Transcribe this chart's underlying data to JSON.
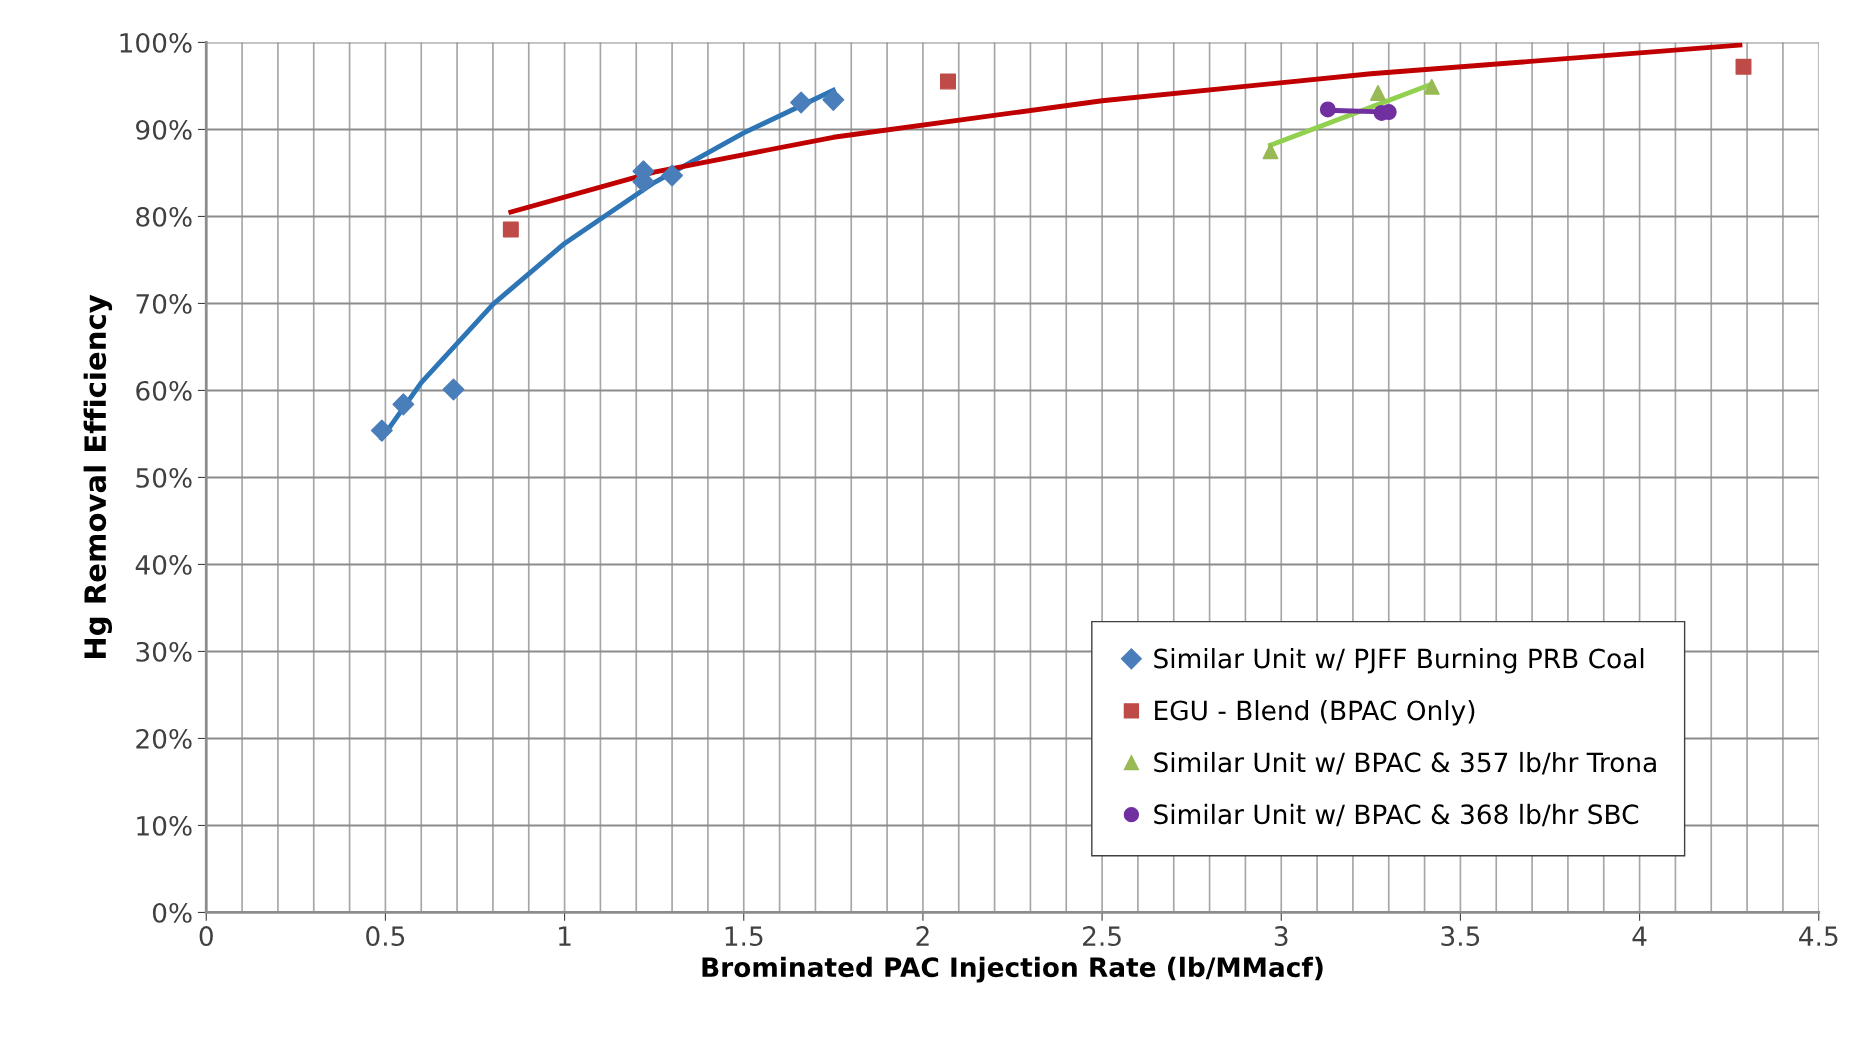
{
  "chart_data": {
    "type": "scatter",
    "xlabel": "Brominated PAC Injection Rate (lb/MMacf)",
    "ylabel": "Hg Removal Efficiency",
    "xlim": [
      0,
      4.5
    ],
    "xticks": [
      0,
      0.5,
      1,
      1.5,
      2,
      2.5,
      3,
      3.5,
      4,
      4.5
    ],
    "ylim": [
      0,
      100
    ],
    "yticks": [
      {
        "value": 0,
        "label": "0%"
      },
      {
        "value": 10,
        "label": "10%"
      },
      {
        "value": 20,
        "label": "20%"
      },
      {
        "value": 30,
        "label": "30%"
      },
      {
        "value": 40,
        "label": "40%"
      },
      {
        "value": 50,
        "label": "50%"
      },
      {
        "value": 60,
        "label": "60%"
      },
      {
        "value": 70,
        "label": "70%"
      },
      {
        "value": 80,
        "label": "80%"
      },
      {
        "value": 90,
        "label": "90%"
      },
      {
        "value": 100,
        "label": "100%"
      }
    ],
    "grid": true,
    "legend": "bottom right",
    "series": [
      {
        "name": "Similar Unit w/ PJFF Burning PRB Coal",
        "color": "#4a7ebb",
        "marker": "diamond",
        "x": [
          0.49,
          0.55,
          0.69,
          1.22,
          1.22,
          1.3,
          1.66,
          1.75
        ],
        "values": [
          55.4,
          58.4,
          60.1,
          85.2,
          84.0,
          84.7,
          93.1,
          93.4
        ]
      },
      {
        "name": "EGU - Blend (BPAC Only)",
        "color": "#be4b48",
        "marker": "square",
        "x": [
          0.85,
          2.07,
          4.29
        ],
        "values": [
          78.5,
          95.5,
          97.2
        ]
      },
      {
        "name": "Similar Unit w/ BPAC & 357 lb/hr Trona",
        "color": "#98b954",
        "marker": "triangle",
        "x": [
          2.97,
          3.27,
          3.42
        ],
        "values": [
          87.5,
          94.2,
          94.9
        ]
      },
      {
        "name": "Similar Unit w/ BPAC & 368 lb/hr SBC",
        "color": "#7030a0",
        "marker": "circle",
        "x": [
          3.13,
          3.28,
          3.3
        ],
        "values": [
          92.3,
          91.9,
          92.0
        ]
      },
      {
        "type": "line",
        "color": "#2e75b6",
        "marker": "none",
        "x": [
          0.49,
          0.6,
          0.8,
          1.0,
          1.25,
          1.5,
          1.75
        ],
        "values": [
          54.5,
          60.9,
          69.9,
          76.9,
          83.9,
          89.6,
          94.5
        ]
      },
      {
        "type": "line",
        "color": "#c00000",
        "marker": "none",
        "x": [
          0.85,
          1.25,
          1.75,
          2.5,
          3.25,
          4.28
        ],
        "values": [
          80.5,
          85.1,
          89.1,
          93.3,
          96.4,
          99.7
        ]
      },
      {
        "type": "line",
        "color": "#92d050",
        "marker": "none",
        "x": [
          2.97,
          3.42
        ],
        "values": [
          88.2,
          95.2
        ]
      },
      {
        "type": "line",
        "color": "#7030a0",
        "marker": "none",
        "x": [
          3.13,
          3.3
        ],
        "values": [
          92.2,
          92.0
        ]
      }
    ]
  }
}
